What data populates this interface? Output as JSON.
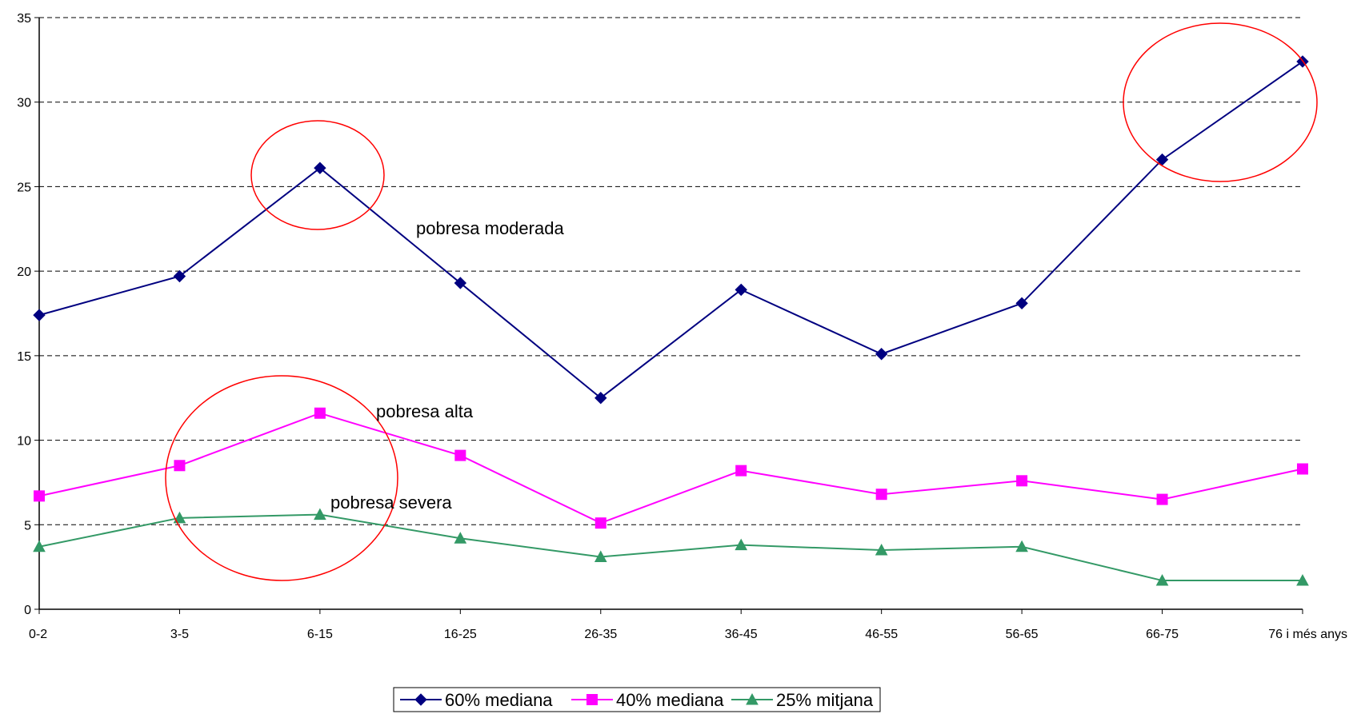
{
  "chart_data": {
    "type": "line",
    "categories": [
      "0-2",
      "3-5",
      "6-15",
      "16-25",
      "26-35",
      "36-45",
      "46-55",
      "56-65",
      "66-75",
      "76 i més anys"
    ],
    "series": [
      {
        "name": "60% mediana",
        "color": "#000080",
        "marker": "diamond",
        "values": [
          17.4,
          19.7,
          26.1,
          19.3,
          12.5,
          18.9,
          15.1,
          18.1,
          26.6,
          32.4
        ]
      },
      {
        "name": "40% mediana",
        "color": "#ff00ff",
        "marker": "square",
        "values": [
          6.7,
          8.5,
          11.6,
          9.1,
          5.1,
          8.2,
          6.8,
          7.6,
          6.5,
          8.3
        ]
      },
      {
        "name": "25% mitjana",
        "color": "#339966",
        "marker": "triangle",
        "values": [
          3.7,
          5.4,
          5.6,
          4.2,
          3.1,
          3.8,
          3.5,
          3.7,
          1.7,
          1.7
        ]
      }
    ],
    "ylim": [
      0,
      35
    ],
    "yticks": [
      0,
      5,
      10,
      15,
      20,
      25,
      30,
      35
    ],
    "grid": "horizontal dashed",
    "legend_position": "bottom-center",
    "annotations": {
      "moderate": "pobresa moderada",
      "high": "pobresa alta",
      "severe": "pobresa severa"
    },
    "highlight_color": "#ff0000"
  }
}
